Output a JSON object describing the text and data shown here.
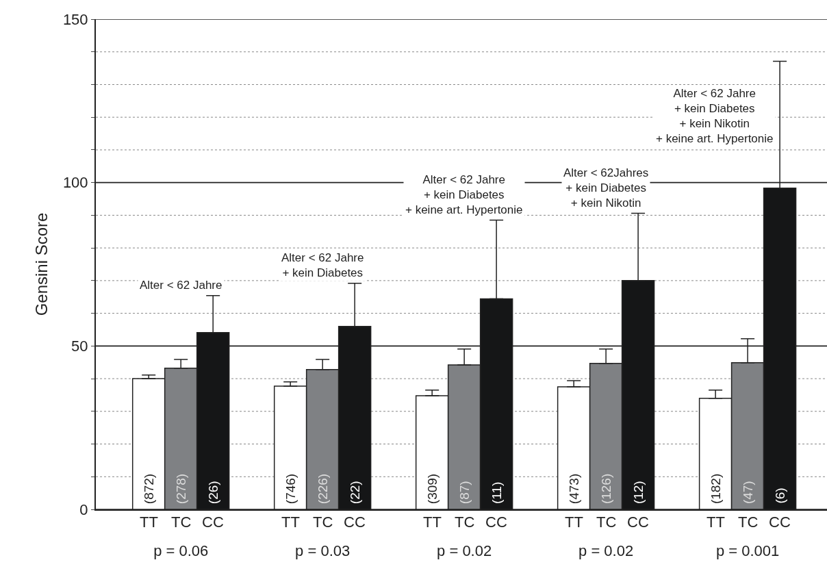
{
  "chart_data": {
    "type": "bar",
    "ylabel": "Gensini Score",
    "categories": [
      "p = 0.06",
      "p = 0.03",
      "p = 0.02",
      "p = 0.02",
      "p = 0.001"
    ],
    "series": [
      {
        "name": "TT",
        "color": "#ffffff",
        "values": [
          40.0,
          37.7,
          34.8,
          37.5,
          34.0
        ],
        "errors": [
          [
            40.0,
            41.1
          ],
          [
            37.7,
            39.0
          ],
          [
            34.8,
            36.5
          ],
          [
            37.5,
            39.4
          ],
          [
            34.0,
            36.5
          ]
        ]
      },
      {
        "name": "TC",
        "color": "#7f8184",
        "values": [
          43.2,
          42.8,
          44.2,
          44.7,
          44.9
        ],
        "errors": [
          [
            43.2,
            45.9
          ],
          [
            42.8,
            45.9
          ],
          [
            44.2,
            49.1
          ],
          [
            44.7,
            49.1
          ],
          [
            44.9,
            52.2
          ]
        ]
      },
      {
        "name": "CC",
        "color": "#151617",
        "values": [
          54.1,
          56.0,
          64.4,
          70.0,
          98.3
        ],
        "errors": [
          [
            54.1,
            65.4
          ],
          [
            56.0,
            69.2
          ],
          [
            64.4,
            88.5
          ],
          [
            70.0,
            90.6
          ],
          [
            98.3,
            137.1
          ]
        ]
      }
    ],
    "annotations": [
      "Alter < 62 Jahre",
      "Alter < 62 Jahre\n+ kein Diabetes",
      "Alter < 62 Jahre\n+ kein Diabetes\n+ keine art. Hypertonie",
      "Alter < 62Jahres\n+ kein Diabetes\n+ kein Nikotin",
      "Alter < 62 Jahre\n+ kein Diabetes\n+ kein Nikotin\n+ keine art. Hypertonie",
      "(872)",
      "(278)",
      "(26)",
      "(746)",
      "(226)",
      "(22)",
      "(309)",
      "(87)",
      "(11)",
      "(473)",
      "(126)",
      "(12)",
      "(182)",
      "(47)",
      "(6)"
    ],
    "ylim": [
      0,
      150
    ],
    "yticks": [
      0,
      {
        "value": 10,
        "label": null
      },
      {
        "value": 20,
        "label": null
      },
      {
        "value": 30,
        "label": null
      },
      {
        "value": 40,
        "label": null
      },
      50,
      {
        "value": 60,
        "label": null
      },
      {
        "value": 70,
        "label": null
      },
      {
        "value": 80,
        "label": null
      },
      {
        "value": 90,
        "label": null
      },
      100,
      {
        "value": 110,
        "label": null
      },
      {
        "value": 120,
        "label": null
      },
      {
        "value": 130,
        "label": null
      },
      {
        "value": 140,
        "label": null
      },
      150
    ],
    "grid": true
  }
}
